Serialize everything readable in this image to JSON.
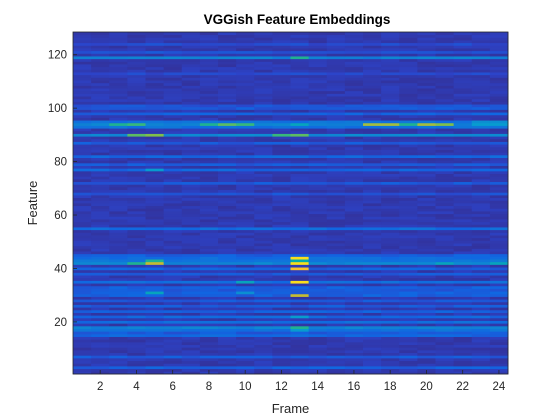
{
  "chart_data": {
    "type": "heatmap",
    "title": "VGGish Feature Embeddings",
    "xlabel": "Frame",
    "ylabel": "Feature",
    "x_range": [
      1,
      24
    ],
    "y_range": [
      1,
      128
    ],
    "xticks": [
      2,
      4,
      6,
      8,
      10,
      12,
      14,
      16,
      18,
      20,
      22,
      24
    ],
    "yticks": [
      20,
      40,
      60,
      80,
      100,
      120
    ],
    "colormap": "parula",
    "colorbar": false,
    "grid": false,
    "y_direction": "normal",
    "color_scale": [
      0,
      1
    ],
    "background_value": 0.06,
    "bands": [
      {
        "feature": 3,
        "value": 0.18,
        "frames": "all"
      },
      {
        "feature": 7,
        "value": 0.16,
        "frames": "all"
      },
      {
        "feature": 15,
        "value": 0.2,
        "frames": "all"
      },
      {
        "feature": 16,
        "value": 0.16,
        "frames": "all"
      },
      {
        "feature": 17,
        "value": 0.24,
        "frames": "all",
        "peaks": [
          [
            13,
            0.4
          ]
        ]
      },
      {
        "feature": 18,
        "value": 0.3,
        "frames": "all",
        "peaks": [
          [
            13,
            0.55
          ]
        ]
      },
      {
        "feature": 20,
        "value": 0.22,
        "frames": "all"
      },
      {
        "feature": 22,
        "value": 0.2,
        "frames": "all",
        "peaks": [
          [
            13,
            0.4
          ]
        ]
      },
      {
        "feature": 24,
        "value": 0.18,
        "frames": "all"
      },
      {
        "feature": 26,
        "value": 0.16,
        "frames": "all"
      },
      {
        "feature": 28,
        "value": 0.16,
        "frames": "all"
      },
      {
        "feature": 30,
        "value": 0.18,
        "frames": "all",
        "peaks": [
          [
            13,
            0.8
          ]
        ]
      },
      {
        "feature": 31,
        "value": 0.18,
        "frames": "all",
        "peaks": [
          [
            5,
            0.45
          ],
          [
            10,
            0.35
          ]
        ]
      },
      {
        "feature": 32,
        "value": 0.16,
        "frames": "all"
      },
      {
        "feature": 33,
        "value": 0.18,
        "frames": "all"
      },
      {
        "feature": 35,
        "value": 0.22,
        "frames": "all",
        "peaks": [
          [
            10,
            0.45
          ],
          [
            13,
            0.95
          ]
        ]
      },
      {
        "feature": 38,
        "value": 0.16,
        "frames": "all"
      },
      {
        "feature": 40,
        "value": 0.18,
        "frames": "all",
        "peaks": [
          [
            13,
            0.9
          ]
        ]
      },
      {
        "feature": 42,
        "value": 0.32,
        "frames": "all",
        "peaks": [
          [
            4,
            0.55
          ],
          [
            5,
            0.8
          ],
          [
            13,
            0.95
          ],
          [
            21,
            0.45
          ],
          [
            24,
            0.45
          ]
        ]
      },
      {
        "feature": 43,
        "value": 0.25,
        "frames": "all",
        "peaks": [
          [
            5,
            0.55
          ],
          [
            13,
            0.5
          ]
        ]
      },
      {
        "feature": 44,
        "value": 0.22,
        "frames": "all",
        "peaks": [
          [
            13,
            0.95
          ]
        ]
      },
      {
        "feature": 45,
        "value": 0.18,
        "frames": "all"
      },
      {
        "feature": 55,
        "value": 0.22,
        "frames": "all"
      },
      {
        "feature": 68,
        "value": 0.14,
        "frames": "all"
      },
      {
        "feature": 72,
        "value": 0.16,
        "frames": "all"
      },
      {
        "feature": 77,
        "value": 0.2,
        "frames": "all",
        "peaks": [
          [
            5,
            0.4
          ]
        ]
      },
      {
        "feature": 79,
        "value": 0.16,
        "frames": "all"
      },
      {
        "feature": 82,
        "value": 0.2,
        "frames": "all"
      },
      {
        "feature": 87,
        "value": 0.16,
        "frames": "all"
      },
      {
        "feature": 90,
        "value": 0.32,
        "frames": "all",
        "peaks": [
          [
            4,
            0.65
          ],
          [
            5,
            0.7
          ],
          [
            12,
            0.6
          ],
          [
            13,
            0.65
          ]
        ]
      },
      {
        "feature": 93,
        "value": 0.24,
        "frames": "all"
      },
      {
        "feature": 94,
        "value": 0.3,
        "frames": "all",
        "peaks": [
          [
            3,
            0.55
          ],
          [
            4,
            0.6
          ],
          [
            8,
            0.55
          ],
          [
            9,
            0.65
          ],
          [
            10,
            0.6
          ],
          [
            13,
            0.45
          ],
          [
            17,
            0.75
          ],
          [
            18,
            0.75
          ],
          [
            19,
            0.55
          ],
          [
            20,
            0.75
          ],
          [
            21,
            0.7
          ],
          [
            23,
            0.4
          ],
          [
            24,
            0.4
          ]
        ]
      },
      {
        "feature": 95,
        "value": 0.24,
        "frames": "all",
        "peaks": [
          [
            23,
            0.35
          ],
          [
            24,
            0.35
          ]
        ]
      },
      {
        "feature": 98,
        "value": 0.18,
        "frames": "all"
      },
      {
        "feature": 100,
        "value": 0.16,
        "frames": "all"
      },
      {
        "feature": 101,
        "value": 0.14,
        "frames": "all"
      },
      {
        "feature": 113,
        "value": 0.12,
        "frames": "all"
      },
      {
        "feature": 119,
        "value": 0.3,
        "frames": "all",
        "peaks": [
          [
            13,
            0.55
          ]
        ]
      },
      {
        "feature": 121,
        "value": 0.14,
        "frames": "all"
      },
      {
        "feature": 124,
        "value": 0.12,
        "frames": "all"
      }
    ]
  }
}
